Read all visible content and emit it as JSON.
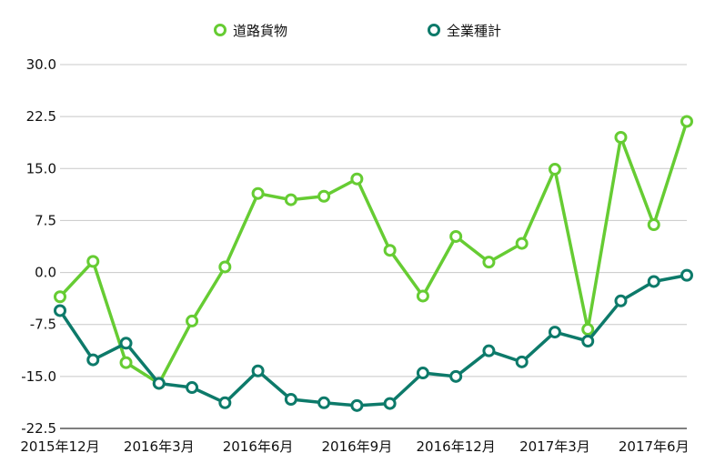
{
  "chart_data": {
    "type": "line",
    "title": "",
    "xlabel": "",
    "ylabel": "",
    "ylim": [
      -22.5,
      30.0
    ],
    "yticks": [
      "30.0",
      "22.5",
      "15.0",
      "7.5",
      "0.0",
      "-7.5",
      "-15.0",
      "-22.5"
    ],
    "ytick_values": [
      30.0,
      22.5,
      15.0,
      7.5,
      0.0,
      -7.5,
      -15.0,
      -22.5
    ],
    "grid": "horizontal",
    "legend_position": "top-center",
    "x": [
      "2015年12月",
      "2016年1月",
      "2016年2月",
      "2016年3月",
      "2016年4月",
      "2016年5月",
      "2016年6月",
      "2016年7月",
      "2016年8月",
      "2016年9月",
      "2016年10月",
      "2016年11月",
      "2016年12月",
      "2017年1月",
      "2017年2月",
      "2017年3月",
      "2017年4月",
      "2017年5月",
      "2017年6月",
      "2017年7月"
    ],
    "xtick_labels": [
      {
        "index": 0,
        "label": "2015年12月"
      },
      {
        "index": 3,
        "label": "2016年3月"
      },
      {
        "index": 6,
        "label": "2016年6月"
      },
      {
        "index": 9,
        "label": "2016年9月"
      },
      {
        "index": 12,
        "label": "2016年12月"
      },
      {
        "index": 15,
        "label": "2017年3月"
      },
      {
        "index": 18,
        "label": "2017年6月"
      }
    ],
    "series": [
      {
        "name": "道路貨物",
        "color": "#66cc33",
        "values": [
          -3.5,
          1.6,
          -13.0,
          -16.0,
          -7.0,
          0.8,
          11.4,
          10.5,
          11.0,
          13.5,
          3.2,
          -3.4,
          5.2,
          1.5,
          4.2,
          14.9,
          -8.2,
          19.5,
          6.9,
          21.8
        ]
      },
      {
        "name": "全業種計",
        "color": "#0d7a6a",
        "values": [
          -5.5,
          -12.6,
          -10.2,
          -16.0,
          -16.6,
          -18.8,
          -14.2,
          -18.3,
          -18.8,
          -19.2,
          -18.9,
          -14.5,
          -15.0,
          -11.3,
          -12.9,
          -8.6,
          -9.9,
          -4.1,
          -1.3,
          -0.4
        ]
      }
    ]
  }
}
